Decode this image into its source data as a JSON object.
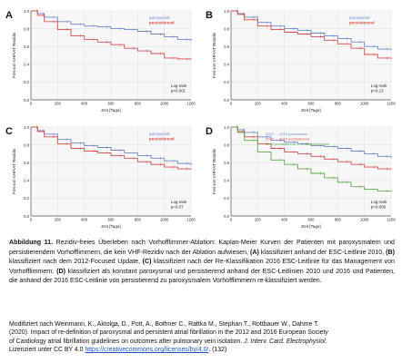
{
  "figure": {
    "caption": {
      "prefix": "Abbildung 11.",
      "body": " Rezidiv-freies Überleben nach Vorhofflimmer-Ablation: Kaplan-Meier Kurven der Patienten mit paroxysmalem und persistierendem Vorhofflimmern, die kein VHF-Rezidiv nach der Ablation aufwiesen, ",
      "A_tag": "(A)",
      "A_text": " klassifiziert anhand der ESC-Leitlinie 2010, ",
      "B_tag": "(B)",
      "B_text": " klassifiziert nach dem 2012-Focused Update, ",
      "C_tag": "(C)",
      "C_text": " klassifiziert nach der Re-Klassifikation 2016 ESC-Leitlinie für das Management von Vorhofflimmern. ",
      "D_tag": "(D)",
      "D_text": " klassifiziert als konstant paroxysmal und persistierend anhand der ESC-Leitlinien 2010 und 2016 und Patienten, die anhand der 2016 ESC-Leitlinie von persistierend zu paroxysmalem Vorhofflimmern re-klassifiziert werden."
    },
    "reference": {
      "line1": "Modifiziert nach Weinmann, K., Aktolga, D., Pott, A., Bothner C., Rattka M., Stephan T., Rottbauer W., Dahme T.",
      "line2": "(2020). Impact of re-definition of paroxysmal and persistent atrial fibrillation in the 2012 and 2016 European Society",
      "line3a": "of Cardiology atrial fibrillation guidelines on outcomes after pulmonary vein isolation. ",
      "journal": "J. Interv. Card. Electrophysiol.",
      "line4a": "Lizenziert unter CC BY 4.0 ",
      "link": "https://creativecommons.org/licenses/by/4.0/",
      "line4b": ". (132)"
    }
  },
  "chart_data": [
    {
      "type": "line",
      "panel": "A",
      "ylabel": "Frei von VHF/AT Rezidiv",
      "xlabel": "Zeit [Tage]",
      "xlim": [
        0,
        1200
      ],
      "ylim": [
        0,
        1
      ],
      "x_ticks": [
        "0",
        "200",
        "400",
        "600",
        "800",
        "1000",
        "1200"
      ],
      "y_ticks": [
        "0.0",
        "0.2",
        "0.4",
        "0.6",
        "0.8",
        "1.0"
      ],
      "legend": [
        "paroxysmal",
        "persistierend"
      ],
      "stats": [
        "Log-rank",
        "p<0.001"
      ],
      "series": [
        {
          "name": "paroxysmal",
          "color": "#6d86c7",
          "x": [
            0,
            50,
            100,
            200,
            300,
            400,
            500,
            600,
            700,
            800,
            900,
            1000,
            1100,
            1200
          ],
          "y": [
            1.0,
            0.97,
            0.93,
            0.88,
            0.85,
            0.83,
            0.82,
            0.8,
            0.79,
            0.77,
            0.74,
            0.71,
            0.68,
            0.66
          ]
        },
        {
          "name": "persistierend",
          "color": "#d94c4c",
          "x": [
            0,
            50,
            100,
            200,
            300,
            400,
            500,
            600,
            700,
            800,
            900,
            1000,
            1100,
            1200
          ],
          "y": [
            1.0,
            0.95,
            0.88,
            0.79,
            0.72,
            0.68,
            0.65,
            0.62,
            0.58,
            0.55,
            0.52,
            0.47,
            0.46,
            0.45
          ]
        }
      ]
    },
    {
      "type": "line",
      "panel": "B",
      "ylabel": "Frei von VHF/AT Rezidiv",
      "xlabel": "Zeit [Tage]",
      "xlim": [
        0,
        1200
      ],
      "ylim": [
        0,
        1
      ],
      "x_ticks": [
        "0",
        "200",
        "400",
        "600",
        "800",
        "1000",
        "1200"
      ],
      "y_ticks": [
        "0.0",
        "0.2",
        "0.4",
        "0.6",
        "0.8",
        "1.0"
      ],
      "legend": [
        "paroxysmal",
        "persistierend"
      ],
      "stats": [
        "Log-rank",
        "p=0.13"
      ],
      "series": [
        {
          "name": "paroxysmal",
          "color": "#6d86c7",
          "x": [
            0,
            50,
            100,
            200,
            300,
            400,
            500,
            600,
            700,
            800,
            900,
            1000,
            1100,
            1200
          ],
          "y": [
            1.0,
            0.97,
            0.93,
            0.87,
            0.83,
            0.8,
            0.78,
            0.75,
            0.72,
            0.69,
            0.65,
            0.6,
            0.57,
            0.56
          ]
        },
        {
          "name": "persistierend",
          "color": "#d94c4c",
          "x": [
            0,
            50,
            100,
            200,
            300,
            400,
            500,
            600,
            700,
            800,
            900,
            1000,
            1100,
            1200
          ],
          "y": [
            1.0,
            0.96,
            0.9,
            0.83,
            0.79,
            0.76,
            0.74,
            0.71,
            0.67,
            0.63,
            0.58,
            0.51,
            0.47,
            0.46
          ]
        }
      ]
    },
    {
      "type": "line",
      "panel": "C",
      "ylabel": "Frei von VHF/AT Rezidiv",
      "xlabel": "Zeit [Tage]",
      "xlim": [
        0,
        1200
      ],
      "ylim": [
        0,
        1
      ],
      "x_ticks": [
        "0",
        "200",
        "400",
        "600",
        "800",
        "1000",
        "1200"
      ],
      "y_ticks": [
        "0.0",
        "0.2",
        "0.4",
        "0.6",
        "0.8",
        "1.0"
      ],
      "legend": [
        "paroxysmal",
        "persistierend"
      ],
      "stats": [
        "Log-rank",
        "p=0.07"
      ],
      "series": [
        {
          "name": "paroxysmal",
          "color": "#6d86c7",
          "x": [
            0,
            50,
            100,
            200,
            300,
            400,
            500,
            600,
            700,
            800,
            900,
            1000,
            1100,
            1200
          ],
          "y": [
            1.0,
            0.96,
            0.92,
            0.86,
            0.82,
            0.79,
            0.77,
            0.74,
            0.71,
            0.68,
            0.65,
            0.62,
            0.59,
            0.57
          ]
        },
        {
          "name": "persistierend",
          "color": "#d94c4c",
          "x": [
            0,
            50,
            100,
            200,
            300,
            400,
            500,
            600,
            700,
            800,
            900,
            1000,
            1100,
            1200
          ],
          "y": [
            1.0,
            0.95,
            0.89,
            0.81,
            0.76,
            0.73,
            0.71,
            0.68,
            0.65,
            0.61,
            0.58,
            0.55,
            0.53,
            0.52
          ]
        }
      ]
    },
    {
      "type": "line",
      "panel": "D",
      "ylabel": "Frei von VHF/AT Rezidiv",
      "xlabel": "Zeit [Tage]",
      "xlim": [
        0,
        1200
      ],
      "ylim": [
        0,
        1
      ],
      "x_ticks": [
        "0",
        "200",
        "400",
        "600",
        "800",
        "1000",
        "1200"
      ],
      "y_ticks": [
        "0.0",
        "0.2",
        "0.4",
        "0.6",
        "0.8",
        "1.0"
      ],
      "legend": [
        "2010 → 2016 paroxysmal",
        "2010 → 2016 persistierend",
        "2010 persistierend → 2016 paroxysmal"
      ],
      "stats": [
        "Log-rank",
        "p=0.009"
      ],
      "series": [
        {
          "name": "2010 → 2016 paroxysmal",
          "color": "#6d86c7",
          "x": [
            0,
            50,
            100,
            200,
            300,
            400,
            500,
            600,
            700,
            800,
            900,
            1000,
            1100,
            1200
          ],
          "y": [
            1.0,
            0.97,
            0.94,
            0.89,
            0.85,
            0.83,
            0.81,
            0.79,
            0.78,
            0.76,
            0.73,
            0.7,
            0.67,
            0.65
          ]
        },
        {
          "name": "2010 → 2016 persistierend",
          "color": "#d94c4c",
          "x": [
            0,
            50,
            100,
            200,
            300,
            400,
            500,
            600,
            700,
            800,
            900,
            1000,
            1100,
            1200
          ],
          "y": [
            1.0,
            0.95,
            0.89,
            0.81,
            0.76,
            0.72,
            0.7,
            0.67,
            0.64,
            0.61,
            0.58,
            0.55,
            0.53,
            0.52
          ]
        },
        {
          "name": "2010 persistierend → 2016 paroxysmal",
          "color": "#5fa64e",
          "x": [
            0,
            50,
            100,
            200,
            300,
            400,
            500,
            600,
            700,
            800,
            900,
            1000,
            1100,
            1200
          ],
          "y": [
            1.0,
            0.94,
            0.85,
            0.72,
            0.63,
            0.58,
            0.53,
            0.48,
            0.43,
            0.38,
            0.33,
            0.3,
            0.28,
            0.27
          ]
        }
      ]
    }
  ]
}
